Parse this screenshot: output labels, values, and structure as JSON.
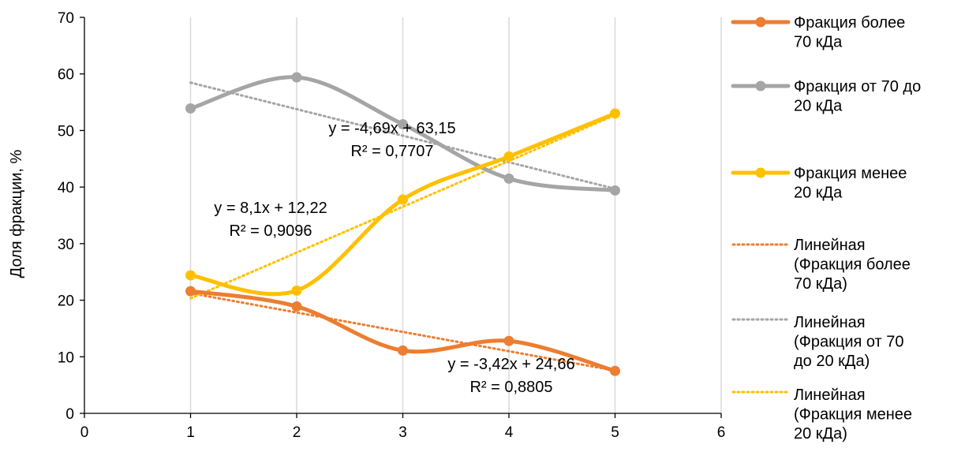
{
  "chart_data": {
    "type": "line",
    "title": "",
    "xlabel": "",
    "ylabel": "Доля фракции, %",
    "xlim": [
      0,
      6
    ],
    "ylim": [
      0,
      70
    ],
    "x_ticks": [
      "0",
      "1",
      "2",
      "3",
      "4",
      "5",
      "6"
    ],
    "y_ticks": [
      "0",
      "10",
      "20",
      "30",
      "40",
      "50",
      "60",
      "70"
    ],
    "grid": "vertical",
    "legend_position": "right",
    "smooth": true,
    "series": [
      {
        "name_lines": [
          "Фракция более",
          "70 кДа"
        ],
        "color": "#ED7D31",
        "x": [
          1,
          2,
          3,
          4,
          5
        ],
        "values": [
          21.6,
          18.9,
          11.1,
          12.8,
          7.5
        ],
        "trendline": {
          "name_lines": [
            "Линейная",
            "(Фракция более",
            "70 кДа)"
          ],
          "slope": -3.42,
          "intercept": 24.66,
          "equation": "y = -3,42x + 24,66",
          "r2": "R² = 0,8805"
        }
      },
      {
        "name_lines": [
          "Фракция от 70 до",
          "20 кДа"
        ],
        "color": "#A5A5A5",
        "x": [
          1,
          2,
          3,
          4,
          5
        ],
        "values": [
          53.9,
          59.4,
          51.1,
          41.5,
          39.4
        ],
        "trendline": {
          "name_lines": [
            "Линейная",
            "(Фракция от 70",
            "до 20 кДа)"
          ],
          "slope": -4.69,
          "intercept": 63.15,
          "equation": "y = -4,69x + 63,15",
          "r2": "R² = 0,7707"
        }
      },
      {
        "name_lines": [
          "Фракция менее",
          "20 кДа"
        ],
        "color": "#FFC000",
        "x": [
          1,
          2,
          3,
          4,
          5
        ],
        "values": [
          24.4,
          21.7,
          37.8,
          45.4,
          53.0
        ],
        "trendline": {
          "name_lines": [
            "Линейная",
            "(Фракция менее",
            "20 кДа)"
          ],
          "slope": 8.1,
          "intercept": 12.22,
          "equation": "y = 8,1x + 12,22",
          "r2": "R² = 0,9096"
        }
      }
    ]
  }
}
